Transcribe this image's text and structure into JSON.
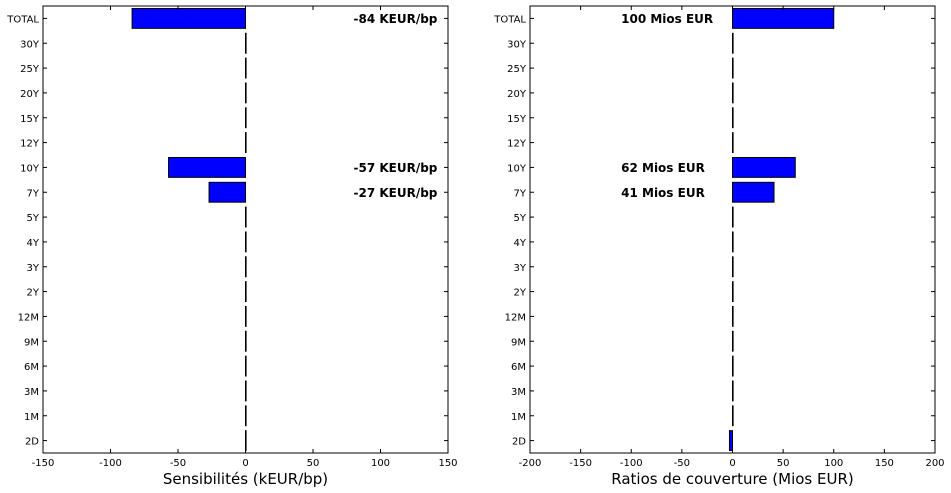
{
  "chart_data": [
    {
      "type": "bar",
      "orientation": "horizontal",
      "categories": [
        "TOTAL",
        "30Y",
        "25Y",
        "20Y",
        "15Y",
        "12Y",
        "10Y",
        "7Y",
        "5Y",
        "4Y",
        "3Y",
        "2Y",
        "12M",
        "9M",
        "6M",
        "3M",
        "1M",
        "2D"
      ],
      "values": [
        -84,
        0,
        0,
        0,
        0,
        0,
        -57,
        -27,
        0,
        0,
        0,
        0,
        0,
        0,
        0,
        0,
        0,
        0
      ],
      "xlabel": "Sensibilités (kEUR/bp)",
      "xlim": [
        -150,
        150
      ],
      "xticks": [
        -150,
        -100,
        -50,
        0,
        50,
        100,
        150
      ],
      "bar_color": "#0000ff",
      "annotations": [
        {
          "category": "TOTAL",
          "text": "-84 KEUR/bp",
          "x": 80
        },
        {
          "category": "10Y",
          "text": "-57 KEUR/bp",
          "x": 80
        },
        {
          "category": "7Y",
          "text": "-27 KEUR/bp",
          "x": 80
        }
      ]
    },
    {
      "type": "bar",
      "orientation": "horizontal",
      "categories": [
        "TOTAL",
        "30Y",
        "25Y",
        "20Y",
        "15Y",
        "12Y",
        "10Y",
        "7Y",
        "5Y",
        "4Y",
        "3Y",
        "2Y",
        "12M",
        "9M",
        "6M",
        "3M",
        "1M",
        "2D"
      ],
      "values": [
        100,
        0,
        0,
        0,
        0,
        0,
        62,
        41,
        0,
        0,
        0,
        0,
        0,
        0,
        0,
        0,
        0,
        -3
      ],
      "xlabel": "Ratios de couverture (Mios EUR)",
      "xlim": [
        -200,
        200
      ],
      "xticks": [
        -200,
        -150,
        -100,
        -50,
        0,
        50,
        100,
        150,
        200
      ],
      "bar_color": "#0000ff",
      "annotations": [
        {
          "category": "TOTAL",
          "text": "100 Mios EUR",
          "x": -110
        },
        {
          "category": "10Y",
          "text": "62 Mios EUR",
          "x": -110
        },
        {
          "category": "7Y",
          "text": "41 Mios EUR",
          "x": -110
        }
      ]
    }
  ]
}
